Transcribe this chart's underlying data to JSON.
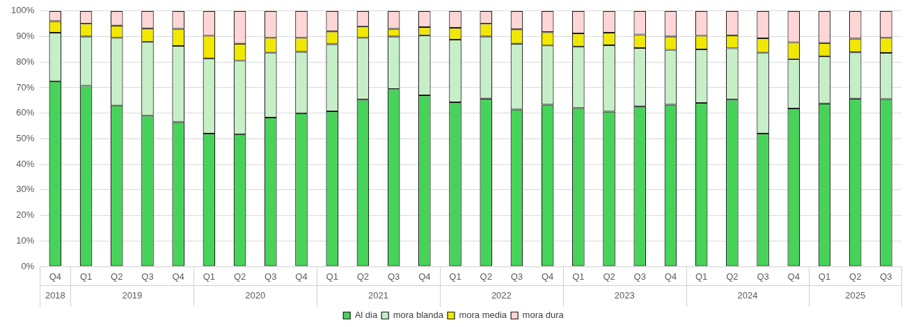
{
  "chart_data": {
    "type": "bar",
    "stacked": true,
    "categories": [
      "Q4",
      "Q1",
      "Q2",
      "Q3",
      "Q4",
      "Q1",
      "Q2",
      "Q3",
      "Q4",
      "Q1",
      "Q2",
      "Q3",
      "Q4",
      "Q1",
      "Q2",
      "Q3",
      "Q4",
      "Q1",
      "Q2",
      "Q3",
      "Q4",
      "Q1",
      "Q2",
      "Q3",
      "Q4",
      "Q1",
      "Q2",
      "Q3"
    ],
    "annotations": [
      "2018",
      "2019",
      "2020",
      "2021",
      "2022",
      "2023",
      "2024",
      "2025"
    ],
    "series": [
      {
        "name": "Al dia",
        "color": "#47d35a",
        "values": [
          72.5,
          70.7,
          63,
          59,
          56.5,
          52,
          51.8,
          58.3,
          60,
          60.7,
          65.3,
          69.4,
          67,
          64.3,
          65.7,
          61.4,
          63.3,
          62,
          60.6,
          62.7,
          63.3,
          64,
          65.3,
          52,
          61.8,
          63.8,
          65.7,
          65.5
        ]
      },
      {
        "name": "mora blanda",
        "color": "#c6efc8",
        "values": [
          19,
          19.3,
          26.5,
          29,
          29.8,
          29.5,
          28.7,
          25.4,
          24,
          26.3,
          24.2,
          20.6,
          23.5,
          24.5,
          24.3,
          25.8,
          23.2,
          24,
          26,
          22.8,
          21.5,
          21,
          20.1,
          31.7,
          19.4,
          18.5,
          18.1,
          18.1
        ]
      },
      {
        "name": "mora media",
        "color": "#f0e800",
        "values": [
          4.5,
          5,
          4.8,
          5.2,
          6.7,
          8.8,
          6.7,
          5.8,
          5.5,
          5,
          4.5,
          3,
          3.2,
          4.6,
          5,
          5.6,
          5.2,
          5.2,
          4.9,
          5.3,
          5.2,
          5.3,
          5.1,
          5.6,
          6.6,
          5.2,
          5.4,
          5.9
        ]
      },
      {
        "name": "mora dura",
        "color": "#ffd5d5",
        "values": [
          4,
          5,
          5.7,
          6.8,
          7,
          9.7,
          12.8,
          10.5,
          10.5,
          8,
          6,
          7,
          6.3,
          6.6,
          5,
          7.2,
          8.3,
          8.8,
          8.5,
          9.2,
          10,
          9.7,
          9.5,
          10.7,
          12.2,
          12.5,
          10.8,
          10.5
        ]
      }
    ],
    "ylim": [
      0,
      100
    ],
    "yticks": [
      {
        "value": 0,
        "label": "0%"
      },
      {
        "value": 10,
        "label": "10%"
      },
      {
        "value": 20,
        "label": "20%"
      },
      {
        "value": 30,
        "label": "30%"
      },
      {
        "value": 40,
        "label": "40%"
      },
      {
        "value": 50,
        "label": "50%"
      },
      {
        "value": 60,
        "label": "60%"
      },
      {
        "value": 70,
        "label": "70%"
      },
      {
        "value": 80,
        "label": "80%"
      },
      {
        "value": 90,
        "label": "90%"
      },
      {
        "value": 100,
        "label": "100%"
      }
    ],
    "grid": "y",
    "legend": "bottom"
  }
}
